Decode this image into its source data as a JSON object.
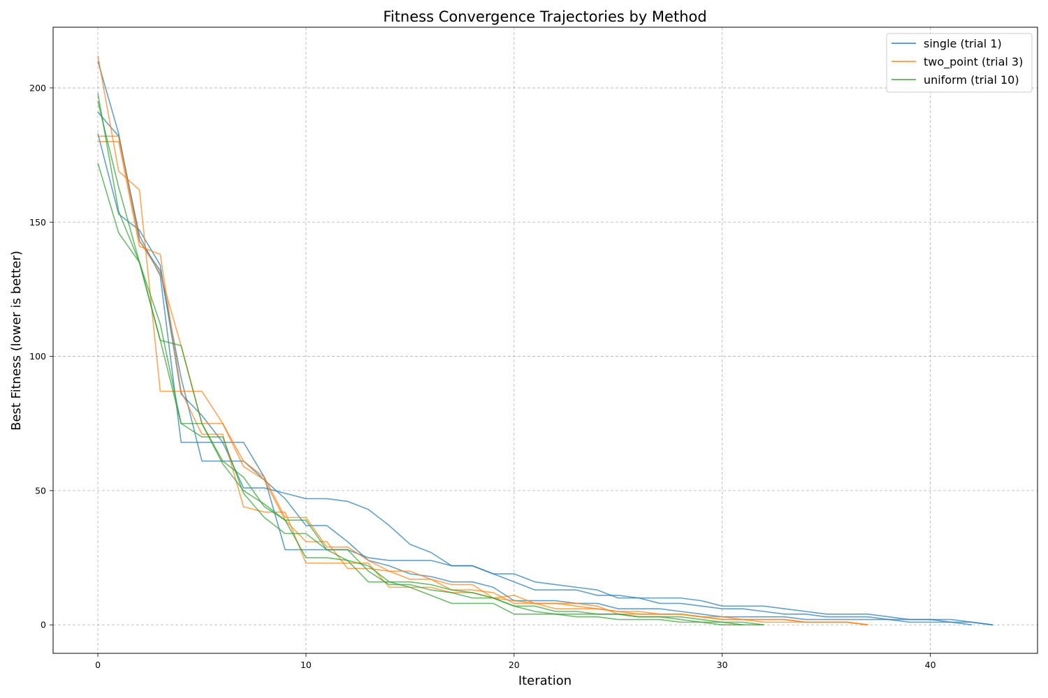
{
  "chart_data": {
    "type": "line",
    "title": "Fitness Convergence Trajectories by Method",
    "xlabel": "Iteration",
    "ylabel": "Best Fitness (lower is better)",
    "xlim": [
      -2.15,
      45.15
    ],
    "ylim": [
      -10.6,
      222.6
    ],
    "xticks": [
      0,
      10,
      20,
      30,
      40
    ],
    "yticks": [
      0,
      50,
      100,
      150,
      200
    ],
    "grid": true,
    "legend": {
      "placement": "top-right",
      "entries": [
        {
          "label": "single (trial 1)",
          "color": "#1f77b4"
        },
        {
          "label": "two_point (trial 3)",
          "color": "#ff7f0e"
        },
        {
          "label": "uniform (trial 10)",
          "color": "#2ca02c"
        }
      ]
    },
    "series": [
      {
        "method": "single",
        "color": "#1f77b4",
        "values": [
          183,
          153,
          147,
          134,
          86,
          78,
          68,
          51,
          51,
          49,
          47,
          47,
          46,
          43,
          37,
          30,
          27,
          22,
          22,
          19,
          19,
          16,
          15,
          14,
          13,
          10,
          10,
          10,
          10,
          9,
          7,
          7,
          7,
          6,
          5,
          4,
          4,
          4,
          3,
          2,
          2,
          2,
          1,
          0
        ]
      },
      {
        "method": "single",
        "color": "#1f77b4",
        "values": [
          191,
          182,
          145,
          130,
          68,
          68,
          68,
          68,
          55,
          28,
          28,
          28,
          28,
          25,
          24,
          24,
          24,
          22,
          22,
          19,
          16,
          13,
          13,
          13,
          11,
          11,
          10,
          8,
          8,
          7,
          6,
          6,
          5,
          4,
          4,
          3,
          3,
          3,
          2,
          2,
          2,
          1,
          1,
          0
        ]
      },
      {
        "method": "single",
        "color": "#1f77b4",
        "values": [
          210,
          183,
          143,
          132,
          92,
          61,
          61,
          61,
          54,
          47,
          37,
          37,
          31,
          24,
          22,
          19,
          18,
          16,
          16,
          14,
          9,
          9,
          9,
          8,
          8,
          6,
          6,
          6,
          5,
          4,
          3,
          3,
          3,
          3,
          2,
          2,
          2,
          2,
          2,
          1,
          1,
          1,
          0
        ]
      },
      {
        "method": "two_point",
        "color": "#ff7f0e",
        "values": [
          212,
          169,
          162,
          87,
          87,
          87,
          75,
          61,
          55,
          40,
          40,
          29,
          29,
          24,
          20,
          20,
          17,
          15,
          15,
          10,
          11,
          8,
          6,
          6,
          6,
          5,
          5,
          4,
          4,
          3,
          3,
          2,
          2,
          2,
          1,
          1,
          1,
          0
        ]
      },
      {
        "method": "two_point",
        "color": "#ff7f0e",
        "values": [
          180,
          180,
          141,
          138,
          87,
          71,
          71,
          44,
          42,
          42,
          23,
          23,
          23,
          23,
          14,
          14,
          14,
          12,
          12,
          10,
          9,
          8,
          8,
          7,
          6,
          5,
          4,
          4,
          4,
          3,
          2,
          2,
          2,
          2,
          1,
          1,
          1,
          0
        ]
      },
      {
        "method": "two_point",
        "color": "#ff7f0e",
        "values": [
          182,
          182,
          143,
          131,
          104,
          75,
          75,
          59,
          54,
          39,
          31,
          31,
          21,
          21,
          20,
          17,
          17,
          13,
          13,
          12,
          8,
          8,
          8,
          8,
          7,
          4,
          4,
          4,
          4,
          3,
          2,
          2,
          1,
          1,
          1,
          1,
          1,
          0
        ]
      },
      {
        "method": "uniform",
        "color": "#2ca02c",
        "values": [
          198,
          154,
          135,
          106,
          104,
          75,
          60,
          50,
          45,
          39,
          39,
          28,
          24,
          16,
          16,
          16,
          15,
          13,
          12,
          10,
          7,
          7,
          5,
          5,
          4,
          4,
          3,
          3,
          2,
          1,
          1,
          1,
          0
        ]
      },
      {
        "method": "uniform",
        "color": "#2ca02c",
        "values": [
          195,
          163,
          135,
          112,
          75,
          70,
          70,
          49,
          40,
          34,
          34,
          28,
          28,
          20,
          15,
          15,
          13,
          12,
          10,
          10,
          7,
          5,
          4,
          4,
          4,
          4,
          3,
          3,
          3,
          2,
          1,
          0
        ]
      },
      {
        "method": "uniform",
        "color": "#2ca02c",
        "values": [
          172,
          146,
          135,
          106,
          75,
          75,
          61,
          55,
          44,
          39,
          25,
          25,
          24,
          22,
          16,
          14,
          11,
          8,
          8,
          8,
          4,
          4,
          4,
          3,
          3,
          2,
          2,
          2,
          1,
          1,
          0,
          0,
          0
        ]
      }
    ]
  }
}
